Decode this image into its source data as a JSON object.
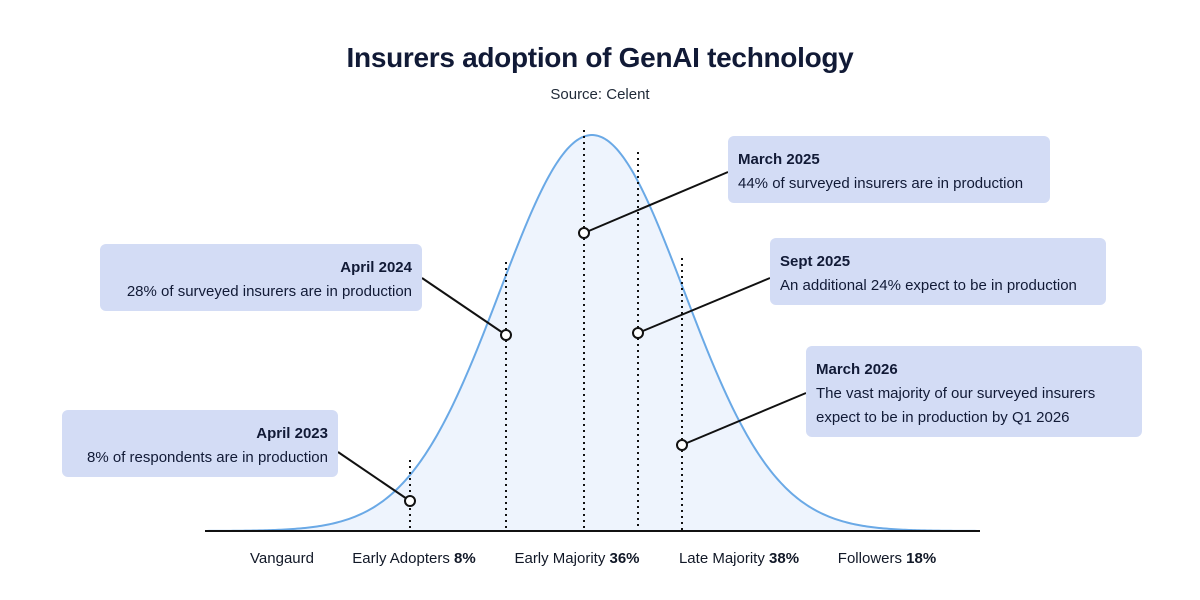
{
  "title": "Insurers adoption of GenAI technology",
  "subtitle": "Source: Celent",
  "colors": {
    "curve": "#6aa9e6",
    "fill": "#eef4fd",
    "callout_bg": "#d3dcf5",
    "ink": "#111111"
  },
  "chart_data": {
    "type": "area",
    "shape": "bell-curve",
    "segments": [
      {
        "name": "Vangaurd",
        "share": ""
      },
      {
        "name": "Early Adopters",
        "share": "8%"
      },
      {
        "name": "Early Majority",
        "share": "36%"
      },
      {
        "name": "Late Majority",
        "share": "38%"
      },
      {
        "name": "Followers",
        "share": "18%"
      }
    ],
    "milestones": [
      {
        "date": "April 2023",
        "text": "8% of respondents are in production"
      },
      {
        "date": "April 2024",
        "text": "28% of surveyed insurers are in production"
      },
      {
        "date": "March 2025",
        "text": "44% of surveyed insurers are in production"
      },
      {
        "date": "Sept 2025",
        "text": "An additional 24% expect to be in production"
      },
      {
        "date": "March 2026",
        "text": "The vast majority of our surveyed insurers expect to be in production by Q1 2026"
      }
    ]
  }
}
